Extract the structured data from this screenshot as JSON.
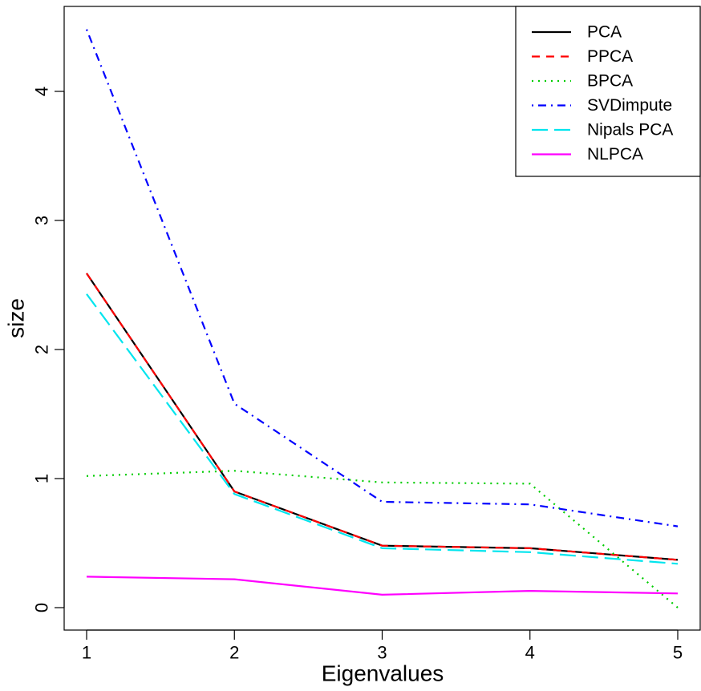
{
  "chart_data": {
    "type": "line",
    "title": "",
    "xlabel": "Eigenvalues",
    "ylabel": "size",
    "x": [
      1,
      2,
      3,
      4,
      5
    ],
    "xlim": [
      1,
      5
    ],
    "ylim": [
      0,
      4.5
    ],
    "xticks": [
      1,
      2,
      3,
      4,
      5
    ],
    "yticks": [
      0,
      1,
      2,
      3,
      4
    ],
    "grid": false,
    "legend_position": "top-right",
    "series": [
      {
        "name": "PCA",
        "values": [
          2.59,
          0.9,
          0.48,
          0.46,
          0.37
        ],
        "color": "#000000",
        "dash": "solid"
      },
      {
        "name": "PPCA",
        "values": [
          2.59,
          0.9,
          0.48,
          0.46,
          0.37
        ],
        "color": "#ff0000",
        "dash": "dashed"
      },
      {
        "name": "BPCA",
        "values": [
          1.02,
          1.06,
          0.97,
          0.96,
          0.0
        ],
        "color": "#00cd00",
        "dash": "dotted"
      },
      {
        "name": "SVDimpute",
        "values": [
          4.48,
          1.58,
          0.82,
          0.8,
          0.63
        ],
        "color": "#0000ff",
        "dash": "dotdash"
      },
      {
        "name": "Nipals PCA",
        "values": [
          2.43,
          0.88,
          0.46,
          0.43,
          0.34
        ],
        "color": "#00e5ee",
        "dash": "longdash"
      },
      {
        "name": "NLPCA",
        "values": [
          0.24,
          0.22,
          0.1,
          0.13,
          0.11
        ],
        "color": "#ff00ff",
        "dash": "solid"
      }
    ]
  }
}
